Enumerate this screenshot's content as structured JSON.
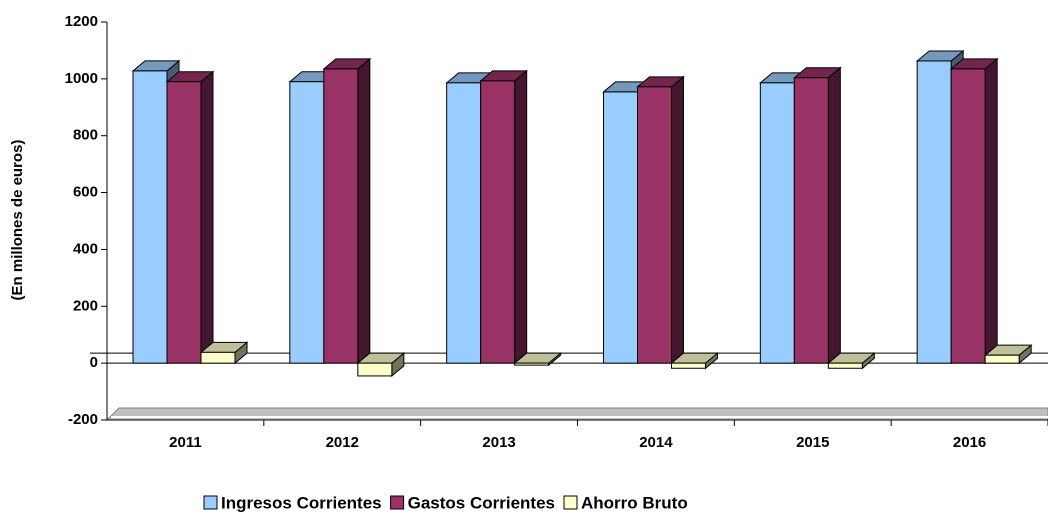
{
  "chart_data": {
    "type": "bar3d",
    "categories": [
      "2011",
      "2012",
      "2013",
      "2014",
      "2015",
      "2016"
    ],
    "series": [
      {
        "name": "Ingresos Corrientes",
        "color": "#99ccff",
        "values": [
          1028,
          990,
          986,
          954,
          986,
          1063
        ]
      },
      {
        "name": "Gastos Corrientes",
        "color": "#993366",
        "values": [
          990,
          1035,
          993,
          972,
          1004,
          1035
        ]
      },
      {
        "name": "Ahorro Bruto",
        "color": "#ffffcc",
        "values": [
          38,
          -45,
          -7,
          -18,
          -18,
          28
        ]
      }
    ],
    "y_label": "(En millones de euros)",
    "ylim": [
      -200,
      1200
    ],
    "yticks": [
      -200,
      0,
      200,
      400,
      600,
      800,
      1000,
      1200
    ],
    "legend": "bottom"
  }
}
